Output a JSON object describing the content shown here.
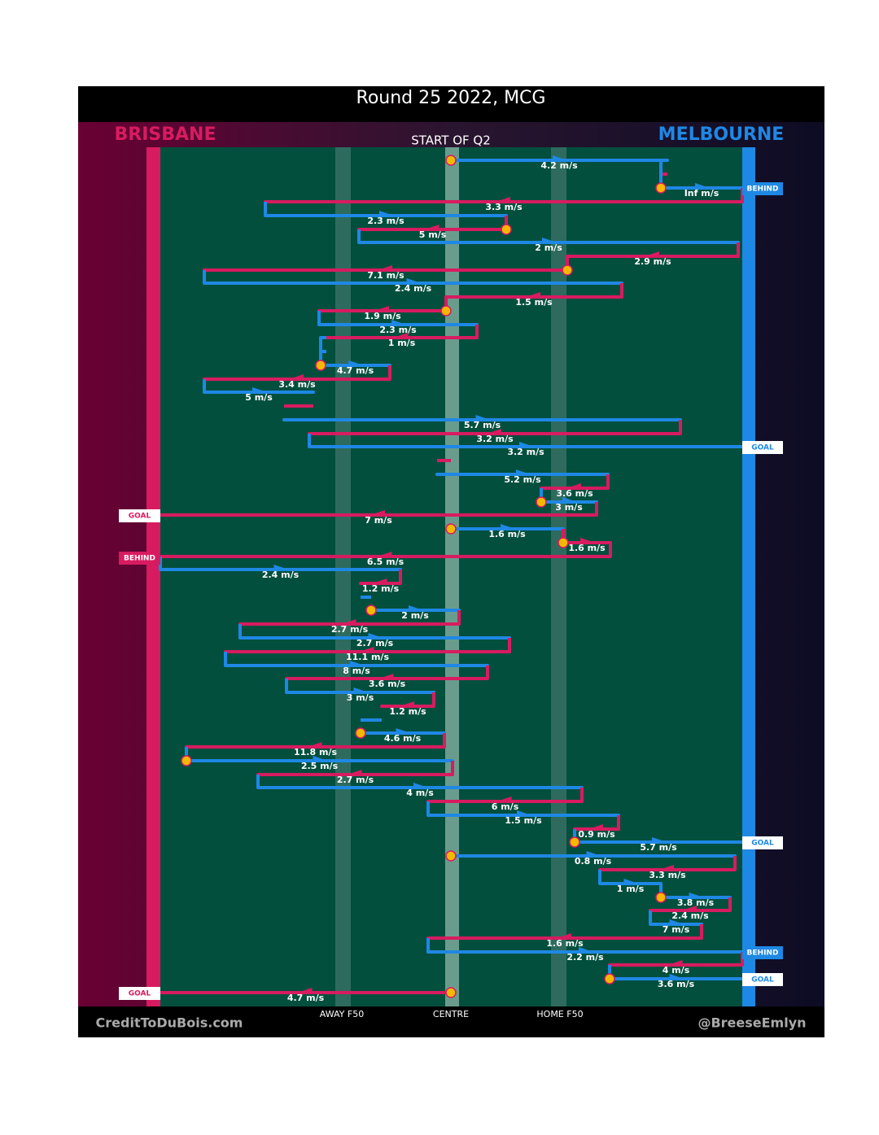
{
  "title": "Round 25 2022, MCG",
  "teams": {
    "left": "BRISBANE",
    "right": "MELBOURNE"
  },
  "subtitle": "START OF Q2",
  "colors": {
    "left": "#d81b60",
    "right": "#1e88e5"
  },
  "field_labels": [
    "AWAY F50",
    "CENTRE",
    "HOME F50"
  ],
  "credits": {
    "left": "CreditToDuBois.com",
    "right": "@BreeseEmlyn"
  },
  "outcomes": [
    {
      "label": "BEHIND"
    },
    {
      "label": "GOAL"
    },
    {
      "label": "GOAL"
    },
    {
      "label": "BEHIND"
    },
    {
      "label": "GOAL"
    },
    {
      "label": "BEHIND"
    },
    {
      "label": "GOAL"
    },
    {
      "label": "GOAL"
    }
  ],
  "possessions": [
    {
      "label": "4.2 m/s"
    },
    {
      "label": "Inf m/s"
    },
    {
      "label": "3.3 m/s"
    },
    {
      "label": "2.3 m/s"
    },
    {
      "label": "5 m/s"
    },
    {
      "label": "2 m/s"
    },
    {
      "label": "2.9 m/s"
    },
    {
      "label": "7.1 m/s"
    },
    {
      "label": "2.4 m/s"
    },
    {
      "label": "1.5 m/s"
    },
    {
      "label": "1.9 m/s"
    },
    {
      "label": "2.3 m/s"
    },
    {
      "label": "1 m/s"
    },
    {
      "label": "4.7 m/s"
    },
    {
      "label": "3.4 m/s"
    },
    {
      "label": "5 m/s"
    },
    {
      "label": "5.7 m/s"
    },
    {
      "label": "3.2 m/s"
    },
    {
      "label": "3.2 m/s"
    },
    {
      "label": "5.2 m/s"
    },
    {
      "label": "3.6 m/s"
    },
    {
      "label": "3 m/s"
    },
    {
      "label": "7 m/s"
    },
    {
      "label": "1.6 m/s"
    },
    {
      "label": "1.6 m/s"
    },
    {
      "label": "6.5 m/s"
    },
    {
      "label": "2.4 m/s"
    },
    {
      "label": "1.2 m/s"
    },
    {
      "label": "2 m/s"
    },
    {
      "label": "2.7 m/s"
    },
    {
      "label": "2.7 m/s"
    },
    {
      "label": "11.1 m/s"
    },
    {
      "label": "8 m/s"
    },
    {
      "label": "3.6 m/s"
    },
    {
      "label": "3 m/s"
    },
    {
      "label": "1.2 m/s"
    },
    {
      "label": "4.6 m/s"
    },
    {
      "label": "11.8 m/s"
    },
    {
      "label": "2.5 m/s"
    },
    {
      "label": "2.7 m/s"
    },
    {
      "label": "4 m/s"
    },
    {
      "label": "6 m/s"
    },
    {
      "label": "1.5 m/s"
    },
    {
      "label": "0.9 m/s"
    },
    {
      "label": "5.7 m/s"
    },
    {
      "label": "0.8 m/s"
    },
    {
      "label": "3.3 m/s"
    },
    {
      "label": "1 m/s"
    },
    {
      "label": "3.8 m/s"
    },
    {
      "label": "2.4 m/s"
    },
    {
      "label": "7 m/s"
    },
    {
      "label": "1.6 m/s"
    },
    {
      "label": "2.2 m/s"
    },
    {
      "label": "4 m/s"
    },
    {
      "label": "3.6 m/s"
    },
    {
      "label": "4.7 m/s"
    }
  ]
}
